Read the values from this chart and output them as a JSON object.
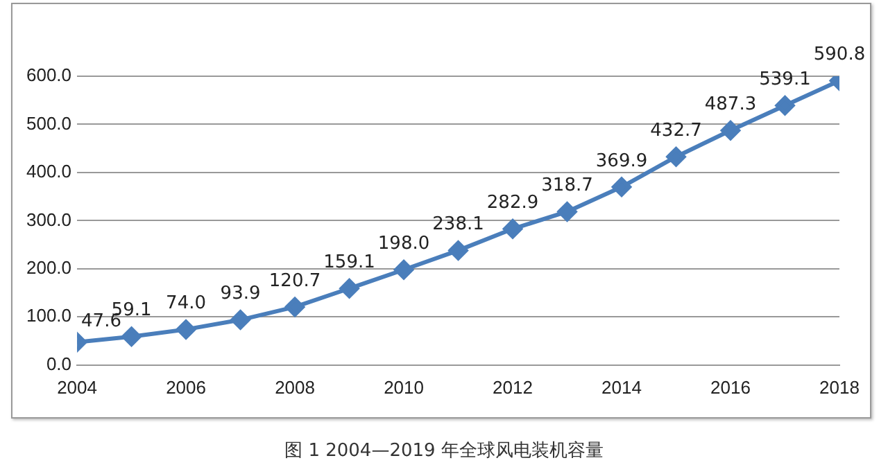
{
  "chart_data": {
    "type": "line",
    "x": [
      2004,
      2005,
      2006,
      2007,
      2008,
      2009,
      2010,
      2011,
      2012,
      2013,
      2014,
      2015,
      2016,
      2017,
      2018
    ],
    "series": [
      {
        "color": "#4a7ebb",
        "values": [
          47.6,
          59.1,
          74.0,
          93.9,
          120.7,
          159.1,
          198.0,
          238.1,
          282.9,
          318.7,
          369.9,
          432.7,
          487.3,
          539.1,
          590.8
        ],
        "value_labels": [
          "47.6",
          "59.1",
          "74.0",
          "93.9",
          "120.7",
          "159.1",
          "198.0",
          "238.1",
          "282.9",
          "318.7",
          "369.9",
          "432.7",
          "487.3",
          "539.1",
          "590.8"
        ]
      }
    ],
    "xlim": [
      2004,
      2018
    ],
    "xticks": [
      2004,
      2006,
      2008,
      2010,
      2012,
      2014,
      2016,
      2018
    ],
    "ylim": [
      0,
      600
    ],
    "yticks": [
      {
        "value": 0,
        "label": "0.0"
      },
      {
        "value": 100,
        "label": "100.0"
      },
      {
        "value": 200,
        "label": "200.0"
      },
      {
        "value": 300,
        "label": "300.0"
      },
      {
        "value": 400,
        "label": "400.0"
      },
      {
        "value": 500,
        "label": "500.0"
      },
      {
        "value": 600,
        "label": "600.0"
      }
    ],
    "grid": "y",
    "marker": "diamond",
    "line_style": "solid",
    "legend": false,
    "annotations": [
      "图 1 2004—2019 年全球风电装机容量"
    ]
  }
}
